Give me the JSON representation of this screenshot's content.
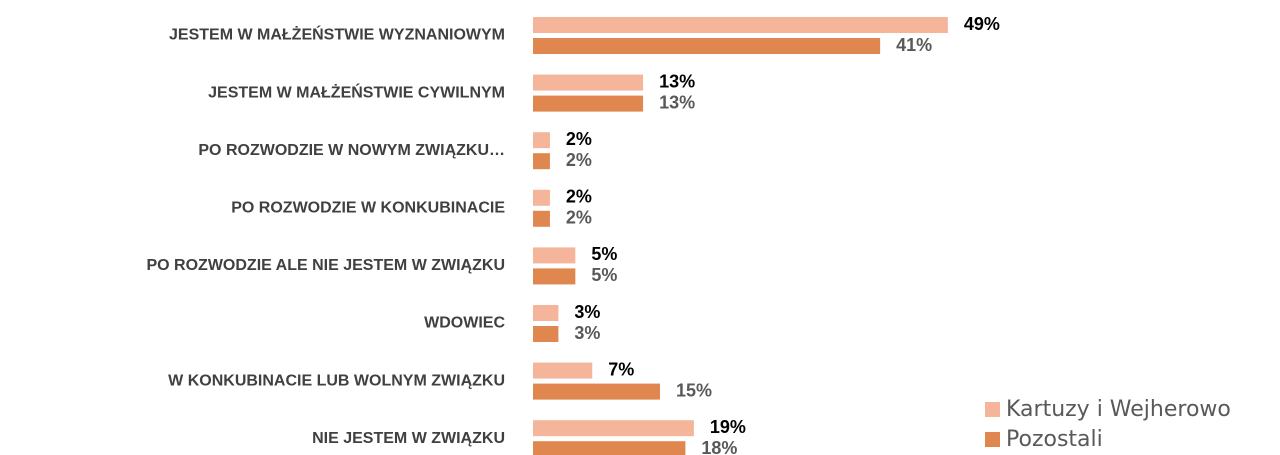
{
  "chart_data": {
    "type": "barh",
    "categories": [
      "JESTEM W MAŁŻEŃSTWIE WYZNANIOWYM",
      "JESTEM W MAŁŻEŃSTWIE CYWILNYM",
      "PO ROZWODZIE W NOWYM ZWIĄZKU…",
      "PO ROZWODZIE W KONKUBINACIE",
      "PO ROZWODZIE ALE NIE JESTEM W ZWIĄZKU",
      "WDOWIEC",
      "W KONKUBINACIE LUB WOLNYM ZWIĄZKU",
      "NIE JESTEM W ZWIĄZKU"
    ],
    "series": [
      {
        "name": "Kartuzy i Wejherowo",
        "color": "#f4b59a",
        "label_color": "#000000",
        "values": [
          49,
          13,
          2,
          2,
          5,
          3,
          7,
          19
        ],
        "value_labels": [
          "49%",
          "13%",
          "2%",
          "2%",
          "5%",
          "3%",
          "7%",
          "19%"
        ]
      },
      {
        "name": "Pozostali",
        "color": "#e0874f",
        "label_color": "#595959",
        "values": [
          41,
          13,
          2,
          2,
          5,
          3,
          15,
          18
        ],
        "value_labels": [
          "41%",
          "13%",
          "2%",
          "2%",
          "5%",
          "3%",
          "15%",
          "18%"
        ]
      }
    ],
    "xlim": [
      0,
      60
    ],
    "legend": "lower right"
  }
}
